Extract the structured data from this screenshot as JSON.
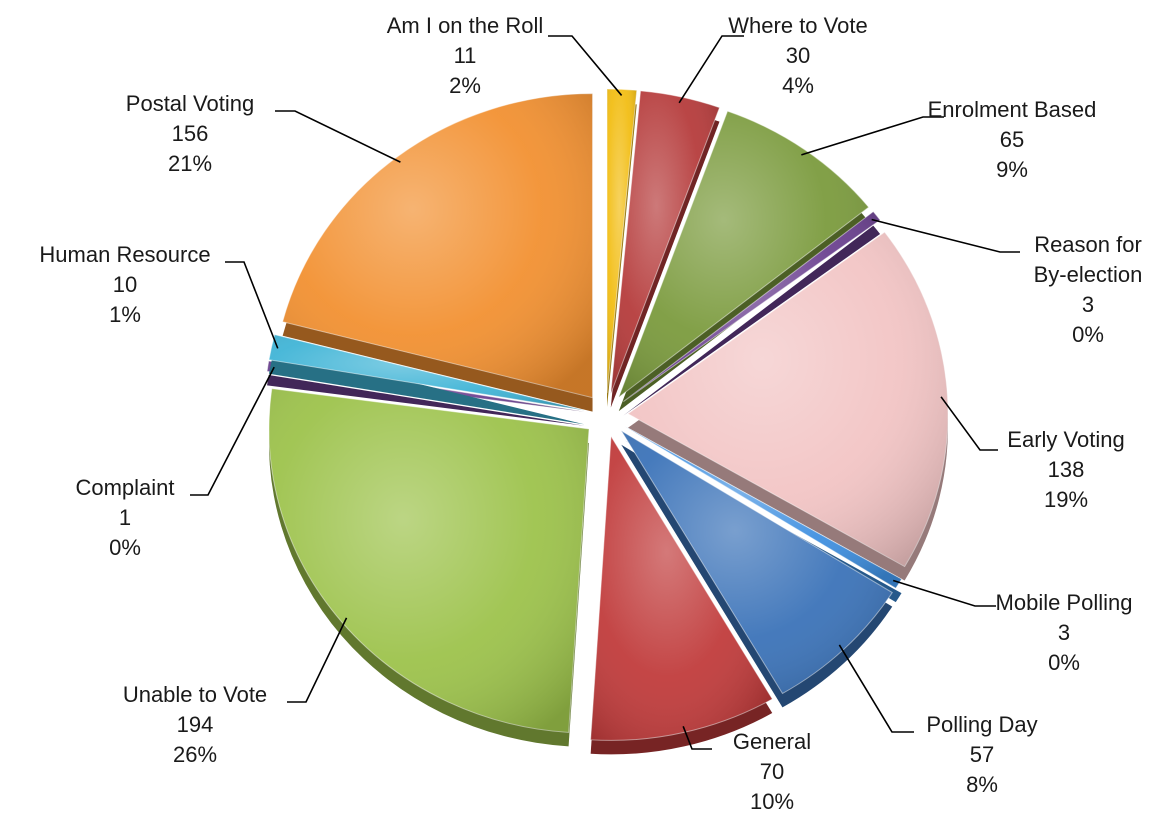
{
  "chart_data": {
    "type": "pie",
    "title": "",
    "slices": [
      {
        "label": "Am I on the Roll",
        "value": 11,
        "percent": "2%",
        "color": "#F2BD12"
      },
      {
        "label": "Where to Vote",
        "value": 30,
        "percent": "4%",
        "color": "#B53A3A"
      },
      {
        "label": "Enrolment Based",
        "value": 65,
        "percent": "9%",
        "color": "#7A9A3C"
      },
      {
        "label": "Reason for By-election",
        "value": 3,
        "percent": "0%",
        "color": "#6A3F8F"
      },
      {
        "label": "Early Voting",
        "value": 138,
        "percent": "19%",
        "color": "#F2C4C4"
      },
      {
        "label": "Mobile Polling",
        "value": 3,
        "percent": "0%",
        "color": "#3E8FE0"
      },
      {
        "label": "Polling Day",
        "value": 57,
        "percent": "8%",
        "color": "#3A72B8"
      },
      {
        "label": "General",
        "value": 70,
        "percent": "10%",
        "color": "#C03A3A"
      },
      {
        "label": "Unable to Vote",
        "value": 194,
        "percent": "26%",
        "color": "#9CC24A"
      },
      {
        "label": "Complaint",
        "value": 1,
        "percent": "0%",
        "color": "#6A3F8F"
      },
      {
        "label": "Human Resource",
        "value": 10,
        "percent": "1%",
        "color": "#3FB4D6"
      },
      {
        "label": "Postal Voting",
        "value": 156,
        "percent": "21%",
        "color": "#F29030"
      }
    ]
  },
  "labels": [
    {
      "lines": [
        "Am I on the Roll",
        "11",
        "2%"
      ]
    },
    {
      "lines": [
        "Where to Vote",
        "30",
        "4%"
      ]
    },
    {
      "lines": [
        "Enrolment Based",
        "65",
        "9%"
      ]
    },
    {
      "lines": [
        "Reason for",
        "By-election",
        "3",
        "0%"
      ]
    },
    {
      "lines": [
        "Early Voting",
        "138",
        "19%"
      ]
    },
    {
      "lines": [
        "Mobile Polling",
        "3",
        "0%"
      ]
    },
    {
      "lines": [
        "Polling Day",
        "57",
        "8%"
      ]
    },
    {
      "lines": [
        "General",
        "70",
        "10%"
      ]
    },
    {
      "lines": [
        "Unable to Vote",
        "194",
        "26%"
      ]
    },
    {
      "lines": [
        "Complaint",
        "1",
        "0%"
      ]
    },
    {
      "lines": [
        "Human Resource",
        "10",
        "1%"
      ]
    },
    {
      "lines": [
        "Postal Voting",
        "156",
        "21%"
      ]
    }
  ]
}
